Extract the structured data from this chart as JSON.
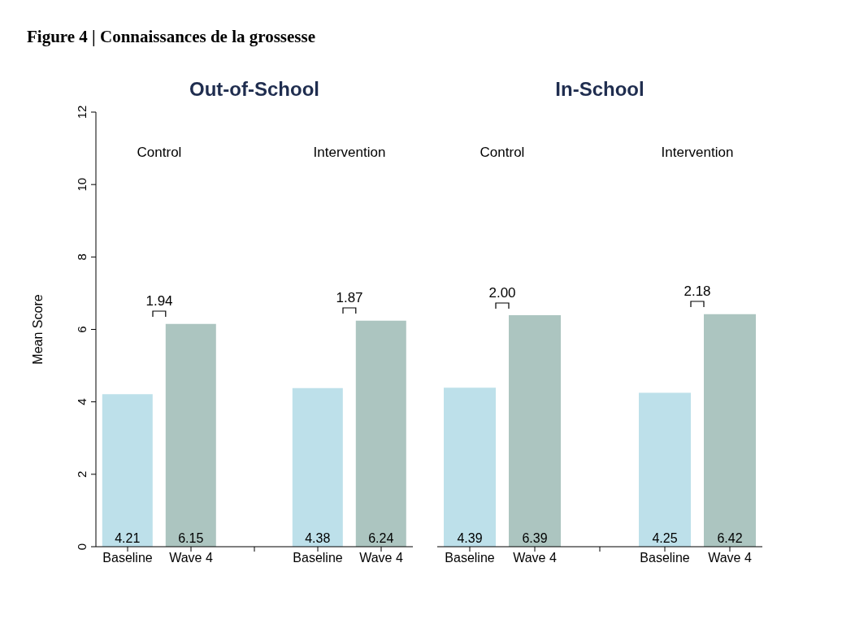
{
  "chart_data": [
    {
      "type": "bar",
      "title": "Out-of-School",
      "ylabel": "Mean Score",
      "categories": [
        "Baseline",
        "Wave 4",
        null,
        "Baseline",
        "Wave 4"
      ],
      "values": [
        4.21,
        6.15,
        null,
        4.38,
        6.24
      ],
      "colors": [
        "#bde0ea",
        "#acc5c0",
        null,
        "#bde0ea",
        "#acc5c0"
      ],
      "data_labels": true,
      "ylim": [
        0,
        12
      ],
      "yticks": [
        0,
        2,
        4,
        6,
        8,
        10,
        12
      ],
      "annotations": [
        "Figure 4 | Connaissances de la grossesse",
        "Control",
        "Intervention",
        "1.94",
        "1.87"
      ]
    },
    {
      "type": "bar",
      "title": "In-School",
      "categories": [
        "Baseline",
        "Wave 4",
        null,
        "Baseline",
        "Wave 4"
      ],
      "values": [
        4.39,
        6.39,
        null,
        4.25,
        6.42
      ],
      "colors": [
        "#bde0ea",
        "#acc5c0",
        null,
        "#bde0ea",
        "#acc5c0"
      ],
      "data_labels": true,
      "ylim": [
        0,
        12
      ],
      "yticks": [
        0,
        2,
        4,
        6,
        8,
        10,
        12
      ],
      "tick_labels": "x",
      "annotations": [
        "Control",
        "Intervention",
        "2.00",
        "2.18"
      ]
    }
  ]
}
